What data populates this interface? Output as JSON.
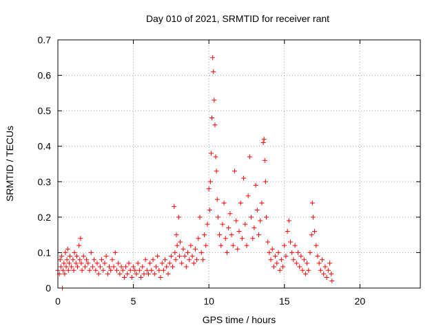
{
  "chart_data": {
    "type": "scatter",
    "title": "Day 010 of 2021, SRMTID for receiver rant",
    "xlabel": "GPS time / hours",
    "ylabel": "SRMTID / TECUs",
    "xlim": [
      0,
      24
    ],
    "ylim": [
      0,
      0.7
    ],
    "xticks": [
      0,
      5,
      10,
      15,
      20
    ],
    "yticks": [
      0,
      0.1,
      0.2,
      0.3,
      0.4,
      0.5,
      0.6,
      0.7
    ],
    "xtick_labels": [
      "0",
      "5",
      "10",
      "15",
      "20"
    ],
    "ytick_labels": [
      "0",
      "0.1",
      "0.2",
      "0.3",
      "0.4",
      "0.5",
      "0.6",
      "0.7"
    ],
    "grid": true,
    "marker": "+",
    "color": "#ff0000",
    "series": [
      {
        "name": "SRMTID",
        "points": [
          [
            0.0,
            0.05
          ],
          [
            0.1,
            0.04
          ],
          [
            0.15,
            0.08
          ],
          [
            0.2,
            0.06
          ],
          [
            0.25,
            0.09
          ],
          [
            0.3,
            0.0
          ],
          [
            0.35,
            0.05
          ],
          [
            0.4,
            0.07
          ],
          [
            0.45,
            0.04
          ],
          [
            0.5,
            0.1
          ],
          [
            0.55,
            0.06
          ],
          [
            0.6,
            0.08
          ],
          [
            0.65,
            0.11
          ],
          [
            0.7,
            0.05
          ],
          [
            0.75,
            0.07
          ],
          [
            0.8,
            0.09
          ],
          [
            0.9,
            0.06
          ],
          [
            1.0,
            0.08
          ],
          [
            1.05,
            0.05
          ],
          [
            1.1,
            0.1
          ],
          [
            1.2,
            0.07
          ],
          [
            1.25,
            0.09
          ],
          [
            1.3,
            0.06
          ],
          [
            1.4,
            0.12
          ],
          [
            1.45,
            0.08
          ],
          [
            1.5,
            0.14
          ],
          [
            1.55,
            0.07
          ],
          [
            1.6,
            0.05
          ],
          [
            1.7,
            0.09
          ],
          [
            1.8,
            0.06
          ],
          [
            1.9,
            0.08
          ],
          [
            2.0,
            0.07
          ],
          [
            2.1,
            0.05
          ],
          [
            2.2,
            0.1
          ],
          [
            2.3,
            0.06
          ],
          [
            2.4,
            0.08
          ],
          [
            2.5,
            0.05
          ],
          [
            2.6,
            0.07
          ],
          [
            2.7,
            0.04
          ],
          [
            2.8,
            0.06
          ],
          [
            2.9,
            0.08
          ],
          [
            3.0,
            0.05
          ],
          [
            3.1,
            0.07
          ],
          [
            3.2,
            0.09
          ],
          [
            3.3,
            0.04
          ],
          [
            3.4,
            0.06
          ],
          [
            3.5,
            0.05
          ],
          [
            3.6,
            0.08
          ],
          [
            3.7,
            0.06
          ],
          [
            3.8,
            0.1
          ],
          [
            3.9,
            0.05
          ],
          [
            4.0,
            0.07
          ],
          [
            4.1,
            0.04
          ],
          [
            4.2,
            0.06
          ],
          [
            4.3,
            0.05
          ],
          [
            4.4,
            0.03
          ],
          [
            4.5,
            0.06
          ],
          [
            4.6,
            0.04
          ],
          [
            4.7,
            0.07
          ],
          [
            4.8,
            0.05
          ],
          [
            4.9,
            0.03
          ],
          [
            5.0,
            0.06
          ],
          [
            5.1,
            0.05
          ],
          [
            5.2,
            0.04
          ],
          [
            5.3,
            0.07
          ],
          [
            5.4,
            0.05
          ],
          [
            5.5,
            0.03
          ],
          [
            5.6,
            0.06
          ],
          [
            5.7,
            0.04
          ],
          [
            5.8,
            0.08
          ],
          [
            5.9,
            0.05
          ],
          [
            6.0,
            0.04
          ],
          [
            6.1,
            0.07
          ],
          [
            6.2,
            0.05
          ],
          [
            6.3,
            0.08
          ],
          [
            6.4,
            0.04
          ],
          [
            6.5,
            0.06
          ],
          [
            6.6,
            0.09
          ],
          [
            6.7,
            0.05
          ],
          [
            6.8,
            0.03
          ],
          [
            6.9,
            0.07
          ],
          [
            7.0,
            0.05
          ],
          [
            7.1,
            0.08
          ],
          [
            7.2,
            0.06
          ],
          [
            7.3,
            0.04
          ],
          [
            7.4,
            0.07
          ],
          [
            7.5,
            0.09
          ],
          [
            7.6,
            0.06
          ],
          [
            7.7,
            0.23
          ],
          [
            7.75,
            0.1
          ],
          [
            7.8,
            0.08
          ],
          [
            7.85,
            0.15
          ],
          [
            7.9,
            0.12
          ],
          [
            8.0,
            0.2
          ],
          [
            8.05,
            0.09
          ],
          [
            8.1,
            0.13
          ],
          [
            8.2,
            0.07
          ],
          [
            8.3,
            0.11
          ],
          [
            8.4,
            0.09
          ],
          [
            8.5,
            0.06
          ],
          [
            8.6,
            0.1
          ],
          [
            8.7,
            0.08
          ],
          [
            8.8,
            0.12
          ],
          [
            8.9,
            0.09
          ],
          [
            9.0,
            0.07
          ],
          [
            9.1,
            0.11
          ],
          [
            9.2,
            0.08
          ],
          [
            9.3,
            0.14
          ],
          [
            9.4,
            0.2
          ],
          [
            9.5,
            0.1
          ],
          [
            9.6,
            0.08
          ],
          [
            9.7,
            0.15
          ],
          [
            9.8,
            0.12
          ],
          [
            9.9,
            0.18
          ],
          [
            10.0,
            0.28
          ],
          [
            10.05,
            0.22
          ],
          [
            10.1,
            0.3
          ],
          [
            10.15,
            0.38
          ],
          [
            10.2,
            0.48
          ],
          [
            10.25,
            0.65
          ],
          [
            10.3,
            0.61
          ],
          [
            10.35,
            0.53
          ],
          [
            10.4,
            0.46
          ],
          [
            10.45,
            0.37
          ],
          [
            10.5,
            0.33
          ],
          [
            10.55,
            0.25
          ],
          [
            10.6,
            0.2
          ],
          [
            10.7,
            0.15
          ],
          [
            10.8,
            0.12
          ],
          [
            10.9,
            0.18
          ],
          [
            11.0,
            0.24
          ],
          [
            11.1,
            0.14
          ],
          [
            11.2,
            0.1
          ],
          [
            11.3,
            0.17
          ],
          [
            11.4,
            0.21
          ],
          [
            11.5,
            0.15
          ],
          [
            11.6,
            0.12
          ],
          [
            11.7,
            0.33
          ],
          [
            11.8,
            0.19
          ],
          [
            11.9,
            0.11
          ],
          [
            12.0,
            0.16
          ],
          [
            12.1,
            0.24
          ],
          [
            12.2,
            0.14
          ],
          [
            12.3,
            0.31
          ],
          [
            12.4,
            0.18
          ],
          [
            12.5,
            0.12
          ],
          [
            12.6,
            0.26
          ],
          [
            12.7,
            0.37
          ],
          [
            12.8,
            0.2
          ],
          [
            12.9,
            0.14
          ],
          [
            13.0,
            0.17
          ],
          [
            13.1,
            0.29
          ],
          [
            13.2,
            0.22
          ],
          [
            13.3,
            0.15
          ],
          [
            13.4,
            0.19
          ],
          [
            13.5,
            0.24
          ],
          [
            13.6,
            0.41
          ],
          [
            13.65,
            0.42
          ],
          [
            13.7,
            0.36
          ],
          [
            13.75,
            0.3
          ],
          [
            13.8,
            0.2
          ],
          [
            13.9,
            0.13
          ],
          [
            14.0,
            0.1
          ],
          [
            14.1,
            0.08
          ],
          [
            14.2,
            0.11
          ],
          [
            14.3,
            0.06
          ],
          [
            14.4,
            0.09
          ],
          [
            14.5,
            0.07
          ],
          [
            14.6,
            0.1
          ],
          [
            14.7,
            0.05
          ],
          [
            14.8,
            0.08
          ],
          [
            14.9,
            0.06
          ],
          [
            15.0,
            0.12
          ],
          [
            15.1,
            0.09
          ],
          [
            15.2,
            0.16
          ],
          [
            15.3,
            0.19
          ],
          [
            15.4,
            0.13
          ],
          [
            15.5,
            0.1
          ],
          [
            15.6,
            0.08
          ],
          [
            15.7,
            0.12
          ],
          [
            15.8,
            0.07
          ],
          [
            15.9,
            0.1
          ],
          [
            16.0,
            0.06
          ],
          [
            16.1,
            0.09
          ],
          [
            16.2,
            0.05
          ],
          [
            16.3,
            0.08
          ],
          [
            16.4,
            0.04
          ],
          [
            16.5,
            0.07
          ],
          [
            16.6,
            0.05
          ],
          [
            16.7,
            0.1
          ],
          [
            16.8,
            0.15
          ],
          [
            16.85,
            0.24
          ],
          [
            16.9,
            0.2
          ],
          [
            17.0,
            0.16
          ],
          [
            17.1,
            0.12
          ],
          [
            17.2,
            0.09
          ],
          [
            17.3,
            0.07
          ],
          [
            17.4,
            0.05
          ],
          [
            17.5,
            0.08
          ],
          [
            17.6,
            0.04
          ],
          [
            17.7,
            0.06
          ],
          [
            17.8,
            0.03
          ],
          [
            17.9,
            0.05
          ],
          [
            18.0,
            0.07
          ],
          [
            18.1,
            0.04
          ],
          [
            18.15,
            0.02
          ]
        ]
      }
    ]
  }
}
